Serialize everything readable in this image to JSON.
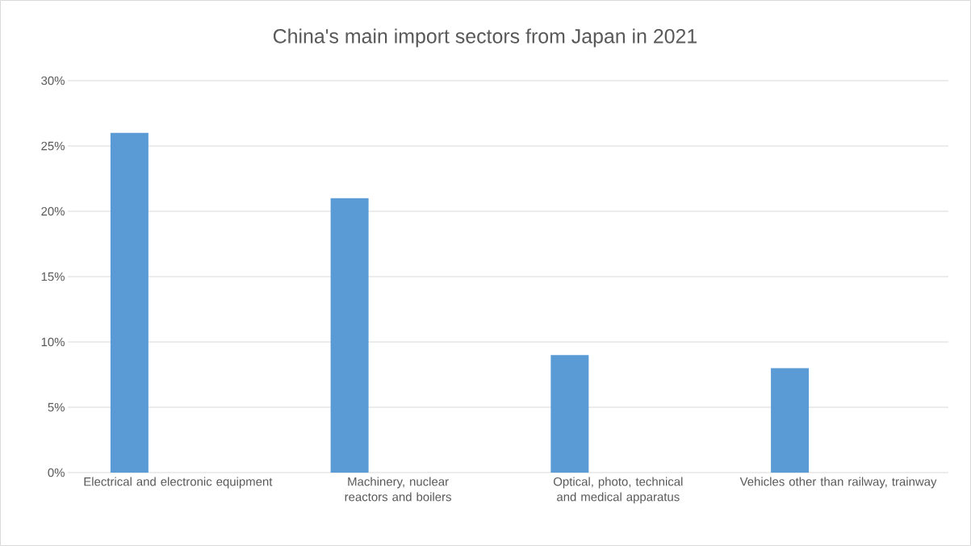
{
  "chart_data": {
    "type": "bar",
    "title": "China's main import sectors from Japan in 2021",
    "categories": [
      "Electrical and electronic equipment",
      "Machinery, nuclear reactors and boilers",
      "Optical, photo, technical and medical apparatus",
      "Vehicles other than railway, trainway"
    ],
    "values": [
      26,
      21,
      9,
      8
    ],
    "color": "#5b9bd5",
    "ylim": [
      0,
      30
    ],
    "yticks": [
      {
        "value": 0,
        "label": "0%"
      },
      {
        "value": 5,
        "label": "5%"
      },
      {
        "value": 10,
        "label": "10%"
      },
      {
        "value": 15,
        "label": "15%"
      },
      {
        "value": 20,
        "label": "20%"
      },
      {
        "value": 25,
        "label": "25%"
      },
      {
        "value": 30,
        "label": "30%"
      }
    ],
    "grid": "y"
  }
}
